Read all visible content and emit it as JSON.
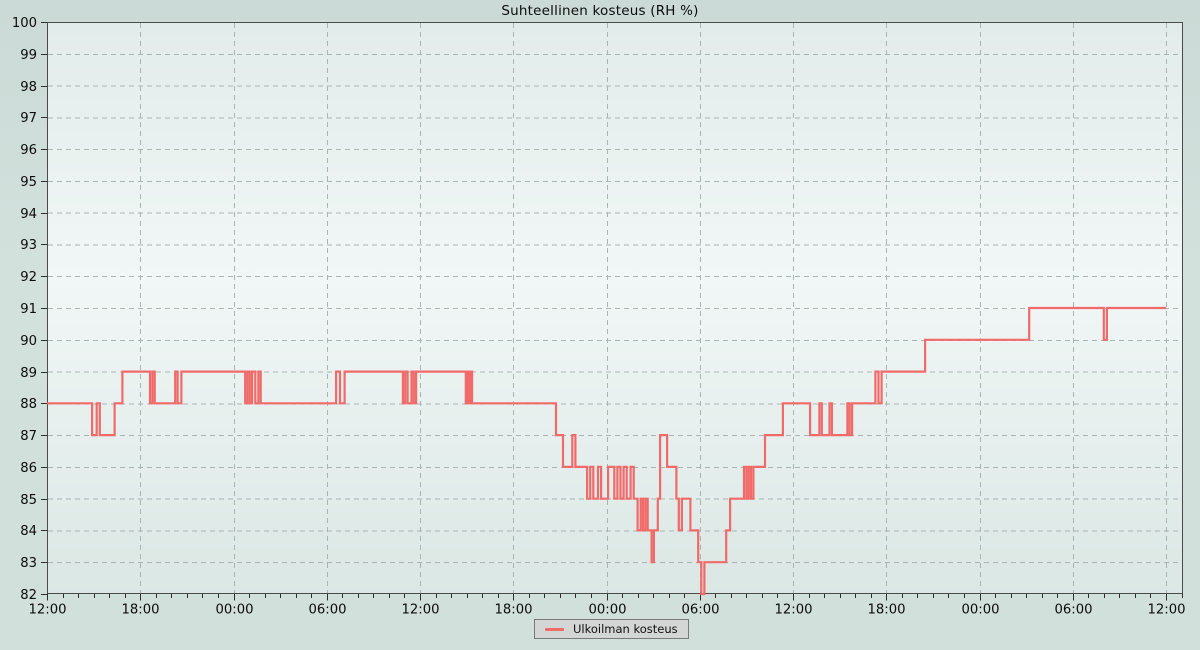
{
  "chart_data": {
    "type": "line",
    "style": "step-after",
    "title": "Suhteellinen kosteus (RH %)",
    "legend_position": "bottom-center",
    "grid": "dashed",
    "colors": {
      "line": "#f16a6a",
      "grid": "#a9b5b3",
      "frame": "#4a4a4a",
      "text": "#0c0c0c"
    },
    "y_axis": {
      "min": 82,
      "max": 100,
      "tick_step": 1,
      "ticks": [
        82,
        83,
        84,
        85,
        86,
        87,
        88,
        89,
        90,
        91,
        92,
        93,
        94,
        95,
        96,
        97,
        98,
        99,
        100
      ]
    },
    "x_axis": {
      "unit": "hours",
      "span_hours": 72,
      "major_tick_hours": 6,
      "minor_tick_hours": 1,
      "labels": [
        "12:00",
        "18:00",
        "00:00",
        "06:00",
        "12:00",
        "18:00",
        "00:00",
        "06:00",
        "12:00",
        "18:00",
        "00:00",
        "06:00",
        "12:00"
      ]
    },
    "series": [
      {
        "name": "Ulkoilman kosteus",
        "color": "#f16a6a",
        "points_hours_value": [
          [
            0,
            88
          ],
          [
            2.9,
            87
          ],
          [
            3.2,
            88
          ],
          [
            3.4,
            87
          ],
          [
            4.35,
            88
          ],
          [
            4.85,
            89
          ],
          [
            6.63,
            88
          ],
          [
            6.78,
            89
          ],
          [
            6.93,
            88
          ],
          [
            8.25,
            89
          ],
          [
            8.4,
            88
          ],
          [
            8.65,
            89
          ],
          [
            12.75,
            88
          ],
          [
            12.9,
            89
          ],
          [
            13.05,
            88
          ],
          [
            13.2,
            89
          ],
          [
            13.4,
            88
          ],
          [
            13.6,
            89
          ],
          [
            13.75,
            88
          ],
          [
            18.6,
            89
          ],
          [
            18.85,
            88
          ],
          [
            19.15,
            89
          ],
          [
            22.9,
            88
          ],
          [
            23.05,
            89
          ],
          [
            23.2,
            88
          ],
          [
            23.45,
            89
          ],
          [
            23.6,
            88
          ],
          [
            23.75,
            89
          ],
          [
            26.95,
            88
          ],
          [
            27.05,
            89
          ],
          [
            27.15,
            88
          ],
          [
            27.25,
            89
          ],
          [
            27.35,
            88
          ],
          [
            32.75,
            87
          ],
          [
            33.2,
            86
          ],
          [
            33.8,
            87
          ],
          [
            34.0,
            86
          ],
          [
            34.75,
            85
          ],
          [
            34.95,
            86
          ],
          [
            35.15,
            85
          ],
          [
            35.45,
            86
          ],
          [
            35.65,
            85
          ],
          [
            36.1,
            86
          ],
          [
            36.5,
            85
          ],
          [
            36.7,
            86
          ],
          [
            36.9,
            85
          ],
          [
            37.1,
            86
          ],
          [
            37.3,
            85
          ],
          [
            37.55,
            86
          ],
          [
            37.75,
            85
          ],
          [
            38.0,
            84
          ],
          [
            38.2,
            85
          ],
          [
            38.35,
            84
          ],
          [
            38.5,
            85
          ],
          [
            38.65,
            84
          ],
          [
            38.9,
            83
          ],
          [
            39.05,
            84
          ],
          [
            39.3,
            85
          ],
          [
            39.45,
            87
          ],
          [
            39.9,
            86
          ],
          [
            40.5,
            85
          ],
          [
            40.65,
            84
          ],
          [
            40.85,
            85
          ],
          [
            41.4,
            84
          ],
          [
            41.9,
            83
          ],
          [
            42.1,
            82
          ],
          [
            42.3,
            83
          ],
          [
            43.7,
            84
          ],
          [
            43.95,
            85
          ],
          [
            44.85,
            86
          ],
          [
            45.0,
            85
          ],
          [
            45.15,
            86
          ],
          [
            45.3,
            85
          ],
          [
            45.45,
            86
          ],
          [
            46.2,
            87
          ],
          [
            47.35,
            88
          ],
          [
            49.1,
            87
          ],
          [
            49.7,
            88
          ],
          [
            49.85,
            87
          ],
          [
            50.35,
            88
          ],
          [
            50.5,
            87
          ],
          [
            51.5,
            88
          ],
          [
            51.65,
            87
          ],
          [
            51.8,
            88
          ],
          [
            53.3,
            89
          ],
          [
            53.5,
            88
          ],
          [
            53.7,
            89
          ],
          [
            56.5,
            90
          ],
          [
            63.2,
            91
          ],
          [
            68.0,
            90
          ],
          [
            68.2,
            91
          ],
          [
            72,
            91
          ]
        ]
      }
    ]
  }
}
